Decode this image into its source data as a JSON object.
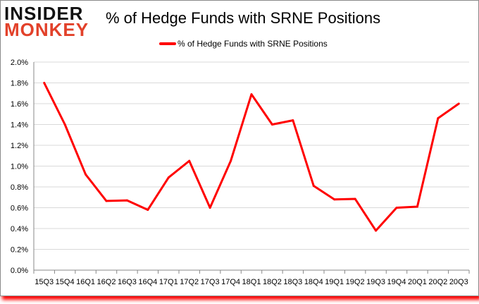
{
  "logo": {
    "line1": "INSIDER",
    "line2": "MONKEY"
  },
  "chart_data": {
    "type": "line",
    "title": "% of Hedge Funds with SRNE Positions",
    "xlabel": "",
    "ylabel": "",
    "legend": "top-center",
    "grid": true,
    "ylim": [
      0,
      2.0
    ],
    "yticks": [
      "0.0%",
      "0.2%",
      "0.4%",
      "0.6%",
      "0.8%",
      "1.0%",
      "1.2%",
      "1.4%",
      "1.6%",
      "1.8%",
      "2.0%"
    ],
    "categories": [
      "15Q3",
      "15Q4",
      "16Q1",
      "16Q2",
      "16Q3",
      "16Q4",
      "17Q1",
      "17Q2",
      "17Q3",
      "17Q4",
      "18Q1",
      "18Q2",
      "18Q3",
      "18Q4",
      "19Q1",
      "19Q2",
      "19Q3",
      "19Q4",
      "20Q1",
      "20Q2",
      "20Q3"
    ],
    "series": [
      {
        "name": "% of Hedge Funds with SRNE Positions",
        "color": "#ff0000",
        "values": [
          1.8,
          1.4,
          0.92,
          0.665,
          0.67,
          0.58,
          0.89,
          1.05,
          0.6,
          1.05,
          1.69,
          1.4,
          1.44,
          0.81,
          0.68,
          0.685,
          0.38,
          0.6,
          0.61,
          1.46,
          1.6
        ]
      }
    ]
  }
}
